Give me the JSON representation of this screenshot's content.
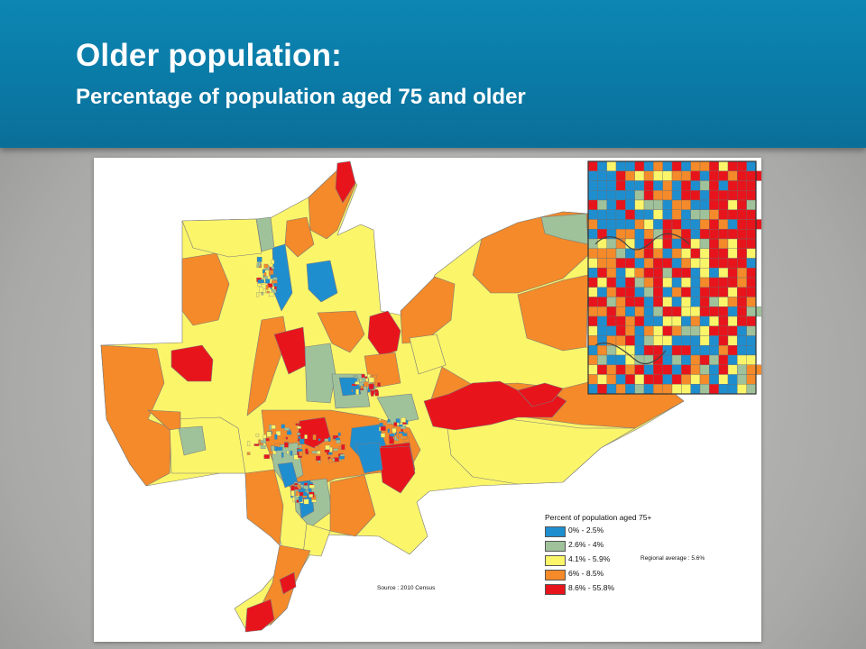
{
  "slide": {
    "title": "Older population:",
    "subtitle": "Percentage of population aged 75 and older"
  },
  "map": {
    "legend_title": "Percent of population aged 75+",
    "classes": [
      {
        "label": "0% - 2.5%",
        "color": "#1f8ecf"
      },
      {
        "label": "2.6% - 4%",
        "color": "#9fc29a"
      },
      {
        "label": "4.1% - 5.9%",
        "color": "#fbf56a"
      },
      {
        "label": "6% - 8.5%",
        "color": "#f48a2a"
      },
      {
        "label": "8.6% - 55.8%",
        "color": "#e8141c"
      }
    ],
    "regional_average": "Regional average : 5.6%",
    "source": "Source : 2010 Census",
    "boundary_color": "#7a7a7a",
    "inset_border_color": "#333333"
  }
}
